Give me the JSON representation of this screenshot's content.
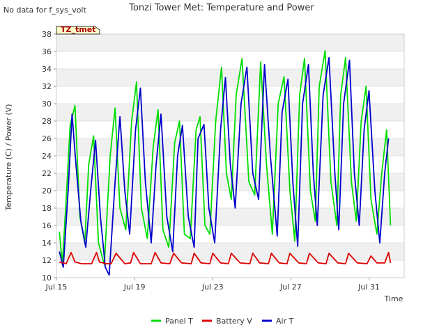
{
  "nodata_text": "No data for f_sys_volt",
  "chart_data": {
    "type": "line",
    "title": "Tonzi Tower Met: Temperature and Power",
    "xlabel": "Time",
    "ylabel": "Temperature (C) / Power (V)",
    "badge": "TZ_tmet",
    "ylim": [
      10,
      38
    ],
    "y_ticks": [
      10,
      12,
      14,
      16,
      18,
      20,
      22,
      24,
      26,
      28,
      30,
      32,
      34,
      36,
      38
    ],
    "xlim": [
      0,
      17.8
    ],
    "x_ticks": [
      {
        "value": 0,
        "label": "Jul 15"
      },
      {
        "value": 4,
        "label": "Jul 19"
      },
      {
        "value": 8,
        "label": "Jul 23"
      },
      {
        "value": 12,
        "label": "Jul 27"
      },
      {
        "value": 16,
        "label": "Jul 31"
      }
    ],
    "grid": true,
    "legend": "bottom",
    "series": [
      {
        "name": "Panel T",
        "color": "#00dd00",
        "x": [
          0.15,
          0.3,
          0.5,
          0.7,
          0.95,
          1.2,
          1.45,
          1.65,
          1.9,
          2.15,
          2.45,
          2.75,
          3.0,
          3.25,
          3.55,
          3.85,
          4.1,
          4.35,
          4.65,
          4.95,
          5.2,
          5.45,
          5.75,
          6.05,
          6.3,
          6.55,
          6.85,
          7.15,
          7.35,
          7.6,
          7.85,
          8.15,
          8.45,
          8.7,
          8.95,
          9.2,
          9.5,
          9.85,
          10.15,
          10.45,
          10.75,
          11.05,
          11.35,
          11.65,
          11.95,
          12.2,
          12.45,
          12.7,
          13.0,
          13.25,
          13.45,
          13.75,
          14.05,
          14.35,
          14.55,
          14.8,
          15.1,
          15.35,
          15.6,
          15.85,
          16.1,
          16.4,
          16.65,
          16.9,
          17.1
        ],
        "values": [
          15.3,
          11.5,
          19.0,
          27.5,
          29.8,
          17.0,
          14.0,
          23.0,
          26.3,
          14.0,
          11.5,
          24.0,
          29.5,
          18.0,
          15.5,
          28.0,
          32.5,
          18.0,
          14.5,
          25.0,
          29.3,
          15.5,
          13.5,
          25.5,
          28.0,
          15.0,
          14.5,
          27.0,
          28.5,
          16.0,
          15.0,
          28.0,
          34.2,
          22.0,
          19.0,
          31.0,
          35.2,
          21.0,
          19.5,
          34.8,
          23.0,
          15.0,
          30.0,
          33.1,
          20.0,
          14.2,
          31.0,
          35.2,
          20.0,
          16.5,
          32.0,
          36.1,
          21.0,
          16.0,
          31.0,
          35.3,
          21.0,
          16.5,
          28.0,
          32.0,
          19.0,
          15.0,
          22.0,
          27.0,
          16.0
        ]
      },
      {
        "name": "Battery V",
        "color": "#dd0000",
        "x": [
          0.15,
          0.5,
          0.75,
          0.95,
          1.3,
          1.8,
          2.05,
          2.2,
          2.55,
          2.8,
          3.05,
          3.5,
          3.8,
          3.95,
          4.3,
          4.85,
          5.05,
          5.35,
          5.8,
          6.0,
          6.4,
          6.9,
          7.05,
          7.4,
          7.85,
          8.0,
          8.4,
          8.8,
          8.95,
          9.4,
          9.9,
          10.05,
          10.4,
          10.85,
          11.0,
          11.4,
          11.8,
          11.95,
          12.4,
          12.8,
          12.95,
          13.4,
          13.8,
          13.95,
          14.4,
          14.8,
          14.95,
          15.4,
          15.9,
          16.1,
          16.4,
          16.8,
          17.0,
          17.1
        ],
        "values": [
          11.8,
          11.6,
          12.9,
          11.8,
          11.6,
          11.6,
          12.9,
          11.8,
          11.6,
          11.6,
          12.8,
          11.6,
          11.7,
          12.9,
          11.6,
          11.6,
          12.9,
          11.7,
          11.6,
          12.8,
          11.7,
          11.6,
          12.8,
          11.7,
          11.6,
          12.8,
          11.7,
          11.6,
          12.8,
          11.7,
          11.6,
          12.8,
          11.7,
          11.6,
          12.8,
          11.7,
          11.6,
          12.8,
          11.7,
          11.6,
          12.8,
          11.7,
          11.6,
          12.8,
          11.7,
          11.6,
          12.8,
          11.7,
          11.6,
          12.5,
          11.7,
          11.7,
          12.9,
          11.7
        ]
      },
      {
        "name": "Air T",
        "color": "#0000cc",
        "x": [
          0.15,
          0.35,
          0.6,
          0.8,
          1.0,
          1.25,
          1.5,
          1.75,
          2.0,
          2.25,
          2.5,
          2.7,
          3.0,
          3.25,
          3.5,
          3.75,
          4.05,
          4.3,
          4.55,
          4.85,
          5.1,
          5.35,
          5.65,
          5.95,
          6.2,
          6.45,
          6.75,
          7.05,
          7.25,
          7.55,
          7.8,
          8.1,
          8.4,
          8.65,
          8.9,
          9.15,
          9.45,
          9.75,
          10.05,
          10.35,
          10.65,
          10.95,
          11.3,
          11.55,
          11.85,
          12.1,
          12.35,
          12.6,
          12.9,
          13.15,
          13.35,
          13.65,
          13.95,
          14.25,
          14.45,
          14.7,
          15.0,
          15.25,
          15.5,
          15.75,
          16.0,
          16.3,
          16.55,
          16.8,
          17.0
        ],
        "values": [
          13.0,
          11.2,
          20.0,
          28.8,
          23.0,
          16.5,
          13.5,
          20.0,
          25.8,
          17.0,
          11.2,
          10.3,
          21.0,
          28.5,
          20.0,
          15.0,
          27.0,
          31.8,
          21.0,
          14.0,
          23.0,
          28.8,
          17.0,
          13.0,
          24.0,
          27.5,
          17.0,
          13.5,
          26.0,
          27.6,
          18.0,
          14.0,
          27.0,
          33.0,
          23.0,
          18.0,
          30.0,
          34.2,
          22.0,
          19.0,
          34.5,
          24.0,
          14.8,
          29.0,
          32.8,
          21.0,
          13.6,
          30.0,
          34.5,
          22.0,
          16.0,
          31.0,
          35.3,
          22.0,
          15.5,
          30.0,
          35.0,
          22.0,
          16.0,
          27.0,
          31.5,
          20.0,
          14.0,
          22.0,
          26.0
        ]
      }
    ]
  }
}
